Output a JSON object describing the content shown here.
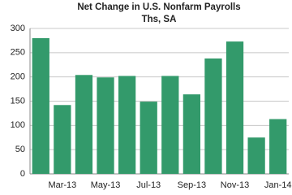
{
  "chart_data": {
    "type": "bar",
    "title": "Net Change in U.S. Nonfarm Payrolls",
    "subtitle": "Ths, SA",
    "categories": [
      null,
      "Mar-13",
      null,
      "May-13",
      null,
      "Jul-13",
      null,
      "Sep-13",
      null,
      "Nov-13",
      null,
      "Jan-14"
    ],
    "values": [
      280,
      142,
      204,
      199,
      202,
      149,
      202,
      164,
      238,
      273,
      75,
      113
    ],
    "color": "#339a6b",
    "ylim": [
      0,
      300
    ],
    "yticks": [
      0,
      50,
      100,
      150,
      200,
      250,
      300
    ],
    "grid": true
  }
}
